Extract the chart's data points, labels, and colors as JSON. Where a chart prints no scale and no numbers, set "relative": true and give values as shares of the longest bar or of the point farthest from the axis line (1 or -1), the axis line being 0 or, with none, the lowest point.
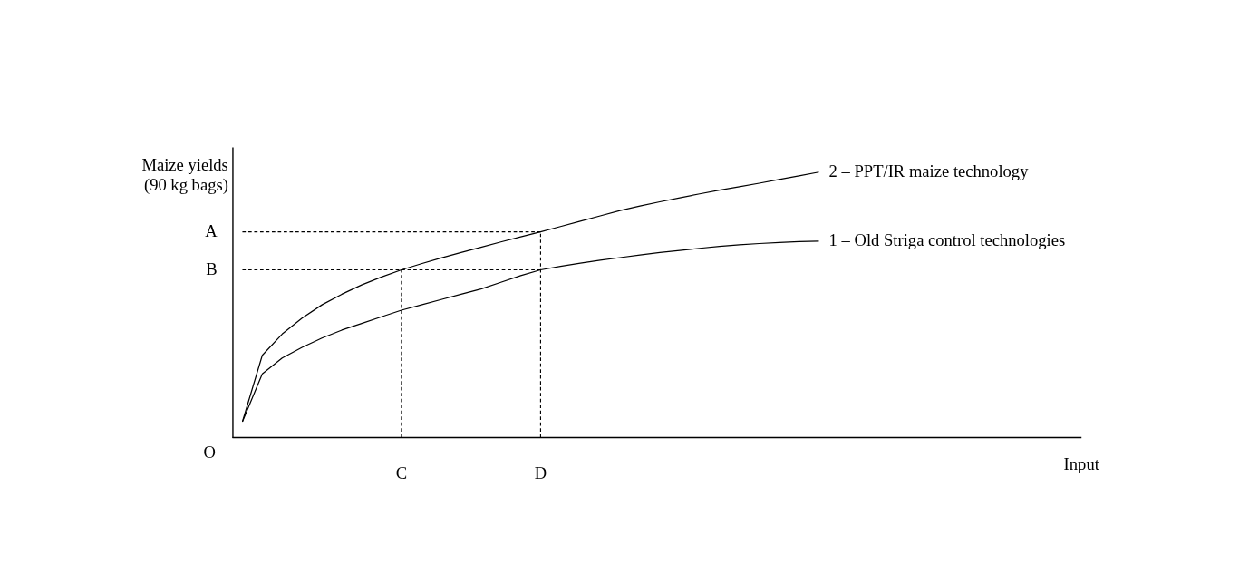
{
  "chart_data": {
    "type": "line",
    "relative": true,
    "ylabel": "Maize yields (90 kg bags)",
    "legend": false,
    "marker": "none",
    "line_style": "solid",
    "categories": [
      null,
      null,
      null,
      null,
      null,
      null,
      null,
      null,
      "C",
      null,
      null,
      null,
      null,
      null,
      null,
      "D",
      null,
      null,
      null,
      null,
      null,
      null,
      null,
      null,
      null,
      null,
      null,
      null,
      null,
      null
    ],
    "annotations": [
      "O",
      "Input"
    ],
    "series": [
      {
        "name": "2 – PPT/IR maize technology",
        "color": "#000000",
        "values": [
          0.06,
          0.31,
          0.39,
          0.45,
          0.5,
          0.54,
          0.575,
          0.605,
          0.632,
          0.655,
          0.677,
          0.697,
          0.717,
          0.737,
          0.756,
          0.775,
          0.795,
          0.815,
          0.835,
          0.855,
          0.872,
          0.888,
          0.903,
          0.918,
          0.932,
          0.945,
          0.958,
          0.972,
          0.986,
          1.0
        ]
      },
      {
        "name": "1 – Old Striga control technologies",
        "color": "#000000",
        "values": [
          0.06,
          0.24,
          0.3,
          0.34,
          0.375,
          0.405,
          0.43,
          0.455,
          0.48,
          0.5,
          0.52,
          0.54,
          0.56,
          0.585,
          0.61,
          0.632,
          0.645,
          0.657,
          0.668,
          0.678,
          0.688,
          0.697,
          0.705,
          0.713,
          0.72,
          0.726,
          0.731,
          0.735,
          0.738,
          0.74
        ]
      }
    ],
    "ref_lines": [
      {
        "axis": "y",
        "value": 0.775,
        "label": "A",
        "line_style": "dashed",
        "color": "#000000"
      },
      {
        "axis": "y",
        "value": 0.632,
        "label": "B",
        "line_style": "dashed",
        "color": "#000000"
      },
      {
        "axis": "x",
        "value": "C",
        "line_style": "dashed",
        "color": "#000000"
      },
      {
        "axis": "x",
        "value": "D",
        "line_style": "dashed",
        "color": "#000000"
      }
    ]
  }
}
